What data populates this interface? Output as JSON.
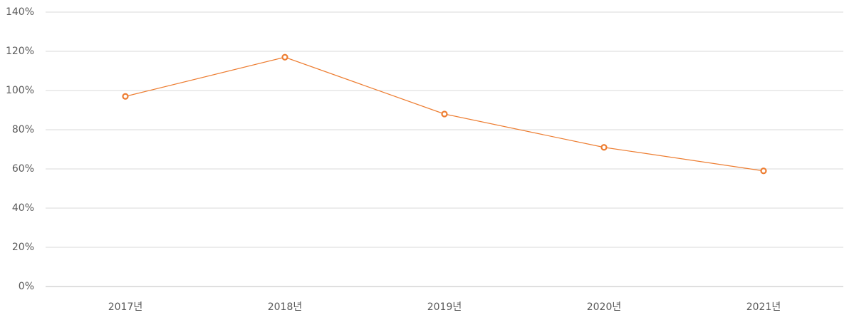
{
  "chart_data": {
    "type": "line",
    "categories": [
      "2017년",
      "2018년",
      "2019년",
      "2020년",
      "2021년"
    ],
    "series": [
      {
        "name": null,
        "color": "#ed7d31",
        "values": [
          97,
          117,
          88,
          71,
          59
        ]
      }
    ],
    "ylim": [
      0,
      140
    ],
    "yticks": [
      {
        "value": 0,
        "label": "0%"
      },
      {
        "value": 20,
        "label": "20%"
      },
      {
        "value": 40,
        "label": "40%"
      },
      {
        "value": 60,
        "label": "60%"
      },
      {
        "value": 80,
        "label": "80%"
      },
      {
        "value": 100,
        "label": "100%"
      },
      {
        "value": 120,
        "label": "120%"
      },
      {
        "value": 140,
        "label": "140%"
      }
    ],
    "grid": true
  }
}
